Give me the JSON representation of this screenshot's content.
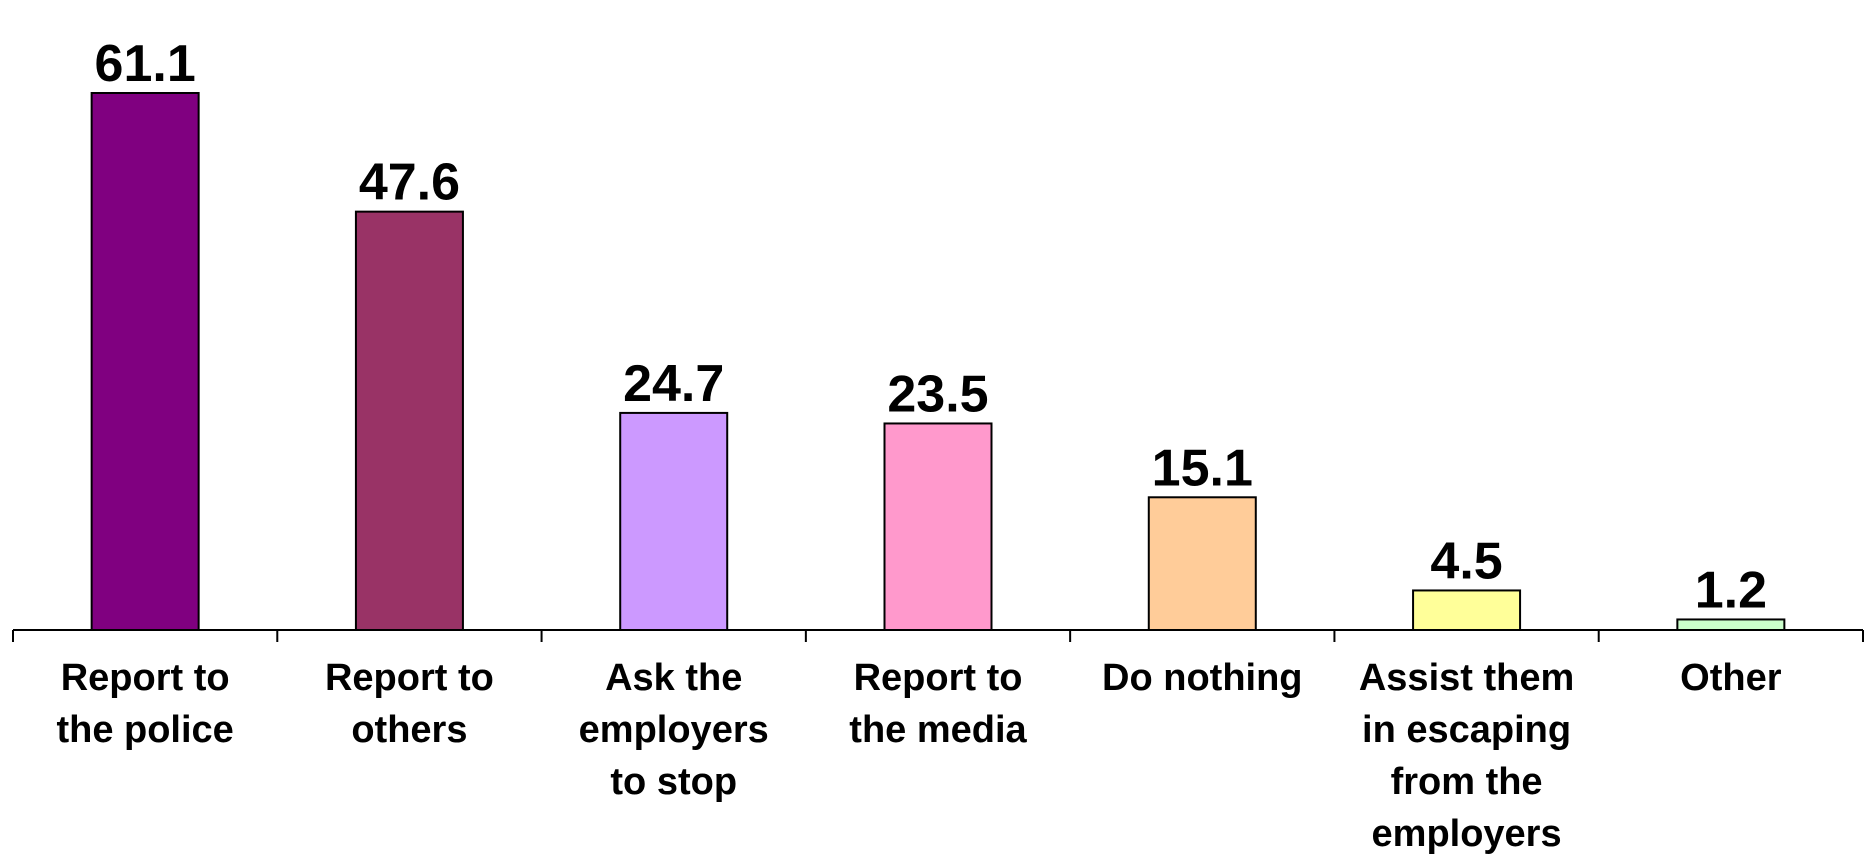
{
  "chart_data": {
    "type": "bar",
    "title": "",
    "xlabel": "",
    "ylabel": "",
    "ylim": [
      0,
      61.1
    ],
    "grid": false,
    "categories": [
      [
        "Report to",
        "the police"
      ],
      [
        "Report to",
        "others"
      ],
      [
        "Ask the",
        "employers",
        "to stop"
      ],
      [
        "Report to",
        "the media"
      ],
      [
        "Do nothing"
      ],
      [
        "Assist them",
        "in escaping",
        "from the",
        "employers"
      ],
      [
        "Other"
      ]
    ],
    "values": [
      61.1,
      47.6,
      24.7,
      23.5,
      15.1,
      4.5,
      1.2
    ],
    "value_labels": [
      "61.1",
      "47.6",
      "24.7",
      "23.5",
      "15.1",
      "4.5",
      "1.2"
    ],
    "colors": [
      "#800080",
      "#993366",
      "#CC99FF",
      "#FF99CC",
      "#FFCC99",
      "#FFFF99",
      "#CCFFCC"
    ]
  }
}
